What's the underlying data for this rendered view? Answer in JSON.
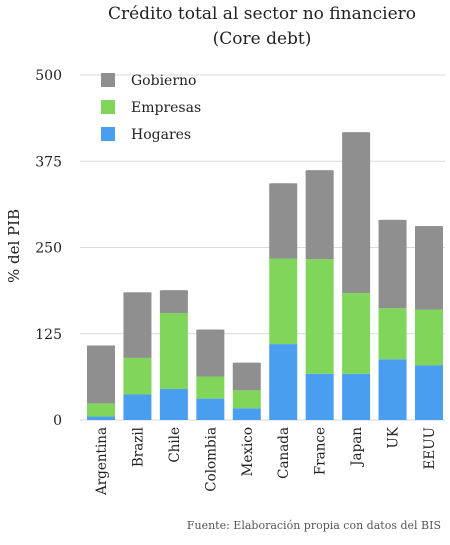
{
  "chart_data": {
    "type": "bar",
    "stacked": true,
    "title": "Crédito total al sector no financiero",
    "subtitle": "(Core debt)",
    "xlabel": "",
    "ylabel": "% del PIB",
    "ylim": [
      0,
      500
    ],
    "yticks": [
      0,
      125,
      250,
      375,
      500
    ],
    "grid": true,
    "legend_position": "top-left",
    "categories": [
      "Argentina",
      "Brazil",
      "Chile",
      "Colombia",
      "Mexico",
      "Canada",
      "France",
      "Japan",
      "UK",
      "EEUU"
    ],
    "series": [
      {
        "name": "Hogares",
        "color": "#4a9ef0",
        "values": [
          5,
          37,
          45,
          31,
          17,
          110,
          67,
          67,
          88,
          79
        ]
      },
      {
        "name": "Empresas",
        "color": "#7fd65a",
        "values": [
          19,
          53,
          110,
          32,
          26,
          124,
          166,
          117,
          74,
          81
        ]
      },
      {
        "name": "Gobierno",
        "color": "#8f8f8f",
        "values": [
          84,
          95,
          33,
          68,
          40,
          109,
          129,
          233,
          128,
          121
        ]
      }
    ],
    "legend_order": [
      "Gobierno",
      "Empresas",
      "Hogares"
    ],
    "source": "Fuente: Elaboración propia con datos del BIS"
  }
}
